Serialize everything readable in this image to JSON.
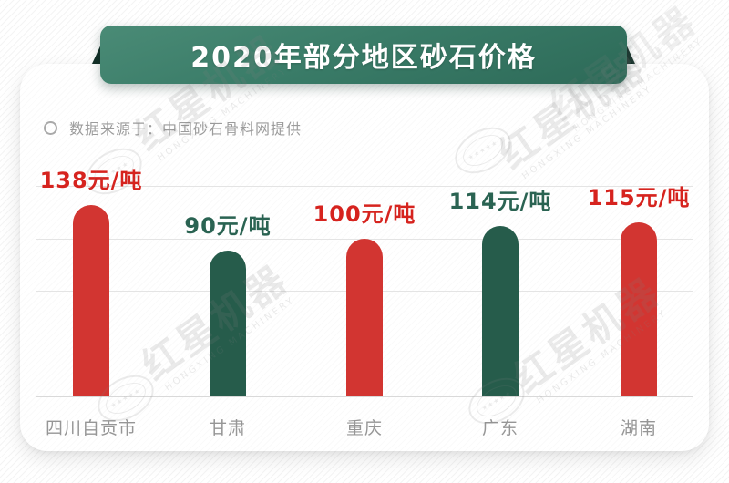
{
  "banner": {
    "title": "2020年部分地区砂石价格"
  },
  "source": {
    "label": "数据来源于：中国砂石骨料网提供"
  },
  "watermark": {
    "brand": "红星机器",
    "brand_en": "HONGXING MACHINERY",
    "stars": "★★★★★"
  },
  "colors": {
    "banner_green_light": "#4a8b76",
    "banner_green_dark": "#2d6a58",
    "banner_fold": "#122f27",
    "bar_red": "#d23531",
    "bar_green": "#265c4b",
    "value_text_red": "#d6231e",
    "value_text_green": "#2a6352",
    "category_text_gray": "#969696",
    "gridline": "#e4e4e4"
  },
  "chart_data": {
    "type": "bar",
    "title": "2020年部分地区砂石价格",
    "source_note": "数据来源于：中国砂石骨料网提供",
    "unit": "元/吨",
    "categories": [
      "四川自贡市",
      "甘肃",
      "重庆",
      "广东",
      "湖南"
    ],
    "values": [
      138,
      90,
      100,
      114,
      115
    ],
    "value_labels": [
      "138元/吨",
      "90元/吨",
      "100元/吨",
      "114元/吨",
      "115元/吨"
    ],
    "bar_colors": [
      "#d23531",
      "#265c4b",
      "#d23531",
      "#265c4b",
      "#d23531"
    ],
    "value_label_colors": [
      "#d6231e",
      "#2a6352",
      "#d6231e",
      "#2a6352",
      "#d6231e"
    ],
    "grid": true,
    "y_gridline_count": 5,
    "legend": false
  }
}
